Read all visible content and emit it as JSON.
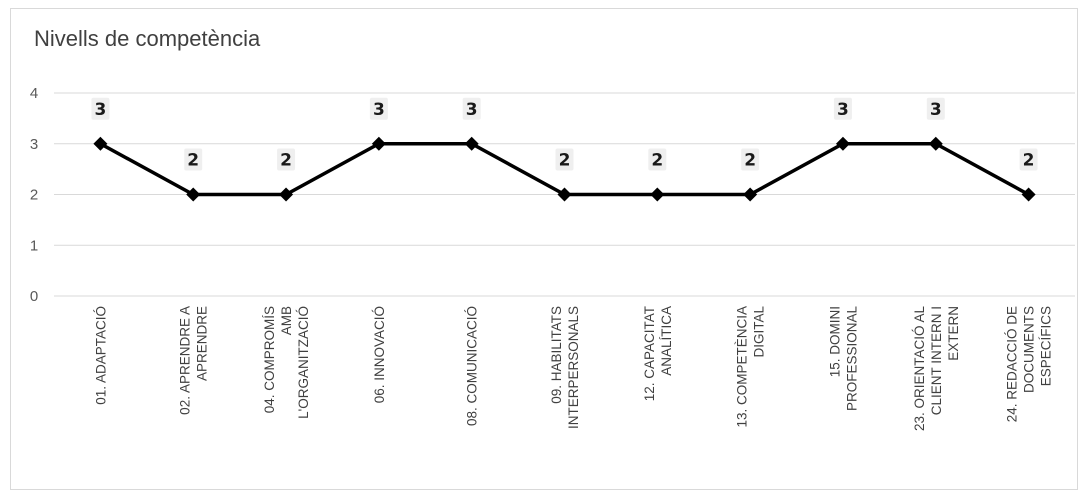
{
  "chart_data": {
    "type": "line",
    "title": "Nivells de competència",
    "xlabel": "",
    "ylabel": "",
    "ylim": [
      0,
      4
    ],
    "yticks": [
      0,
      1,
      2,
      3,
      4
    ],
    "grid": true,
    "categories": [
      [
        "01. ADAPTACIÓ"
      ],
      [
        "02. APRENDRE A",
        "APRENDRE"
      ],
      [
        "04. COMPROMÍS",
        "AMB",
        "L'ORGANITZACIÓ"
      ],
      [
        "06. INNOVACIÓ"
      ],
      [
        "08. COMUNICACIÓ"
      ],
      [
        "09. HABILITATS",
        "INTERPERSONALS"
      ],
      [
        "12. CAPACITAT",
        "ANALÍTICA"
      ],
      [
        "13. COMPETÈNCIA",
        "DIGITAL"
      ],
      [
        "15. DOMINI",
        "PROFESSIONAL"
      ],
      [
        "23. ORIENTACIÓ AL",
        "CLIENT INTERN I",
        "EXTERN"
      ],
      [
        "24. REDACCIÓ DE",
        "DOCUMENTS",
        "ESPECÍFICS"
      ]
    ],
    "series": [
      {
        "values": [
          3,
          2,
          2,
          3,
          3,
          2,
          2,
          2,
          3,
          3,
          2
        ],
        "data_labels": true
      }
    ],
    "colors": {
      "line": "#000000",
      "grid": "#d9d9d9",
      "axis_text": "#595959"
    }
  }
}
